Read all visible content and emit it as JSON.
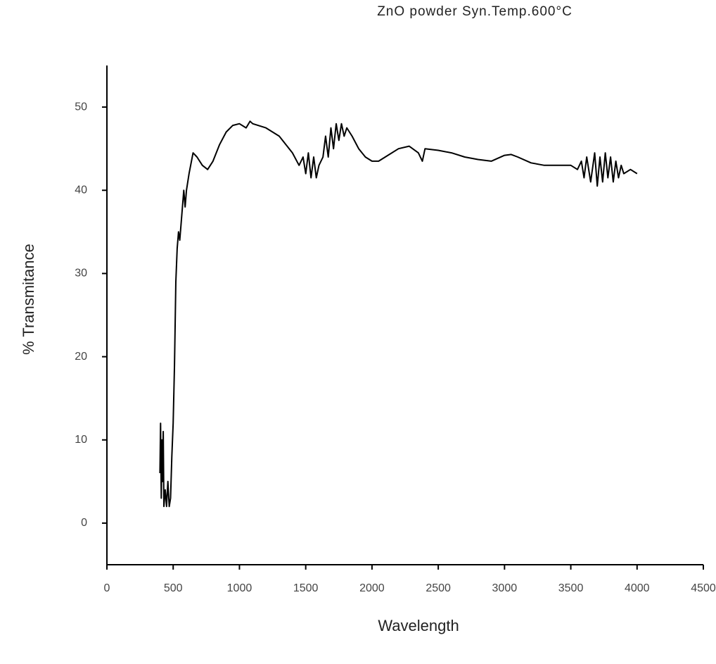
{
  "chart_data": {
    "type": "line",
    "title": "ZnO powder Syn.Temp.600°C",
    "x_label": "Wavelength",
    "y_label": "% Transmitance",
    "xlim": [
      0,
      4500
    ],
    "ylim": [
      -5,
      55
    ],
    "xticks": [
      0,
      500,
      1000,
      1500,
      2000,
      2500,
      3000,
      3500,
      4000,
      4500
    ],
    "yticks": [
      0,
      10,
      20,
      30,
      40,
      50
    ],
    "grid": false,
    "x": [
      400,
      405,
      410,
      415,
      420,
      425,
      430,
      440,
      450,
      460,
      470,
      480,
      490,
      500,
      510,
      520,
      530,
      540,
      550,
      560,
      580,
      590,
      600,
      620,
      650,
      680,
      720,
      760,
      800,
      850,
      900,
      950,
      1000,
      1050,
      1080,
      1100,
      1200,
      1300,
      1350,
      1400,
      1450,
      1480,
      1500,
      1520,
      1540,
      1560,
      1580,
      1600,
      1630,
      1650,
      1670,
      1690,
      1710,
      1730,
      1750,
      1770,
      1790,
      1810,
      1850,
      1900,
      1950,
      2000,
      2050,
      2100,
      2200,
      2280,
      2350,
      2380,
      2400,
      2500,
      2600,
      2700,
      2800,
      2900,
      3000,
      3050,
      3100,
      3200,
      3300,
      3400,
      3500,
      3550,
      3580,
      3600,
      3620,
      3650,
      3680,
      3700,
      3720,
      3740,
      3760,
      3780,
      3800,
      3820,
      3840,
      3860,
      3880,
      3900,
      3950,
      4000
    ],
    "series": [
      {
        "name": "ZnO powder",
        "color": "#000000",
        "values": [
          6,
          12,
          3,
          10,
          5,
          11,
          2,
          4,
          2,
          5,
          2,
          3,
          8,
          12,
          19,
          29,
          33,
          35,
          34,
          36,
          40,
          38,
          40,
          42,
          44.5,
          44,
          43,
          42.5,
          43.5,
          45.5,
          47,
          47.8,
          48,
          47.5,
          48.3,
          48,
          47.5,
          46.5,
          45.5,
          44.5,
          43,
          44,
          42,
          44.5,
          41.5,
          44,
          41.5,
          43,
          44,
          46.5,
          44,
          47.5,
          45,
          48,
          46,
          48,
          46.5,
          47.5,
          46.5,
          45,
          44,
          43.5,
          43.5,
          44,
          45,
          45.3,
          44.5,
          43.5,
          45,
          44.8,
          44.5,
          44,
          43.7,
          43.5,
          44.2,
          44.3,
          44,
          43.3,
          43,
          43,
          43,
          42.5,
          43.5,
          41.5,
          44,
          41,
          44.5,
          40.5,
          44,
          41,
          44.5,
          41.5,
          44,
          41,
          43.5,
          41.5,
          43,
          42,
          42.5,
          42
        ]
      }
    ]
  }
}
